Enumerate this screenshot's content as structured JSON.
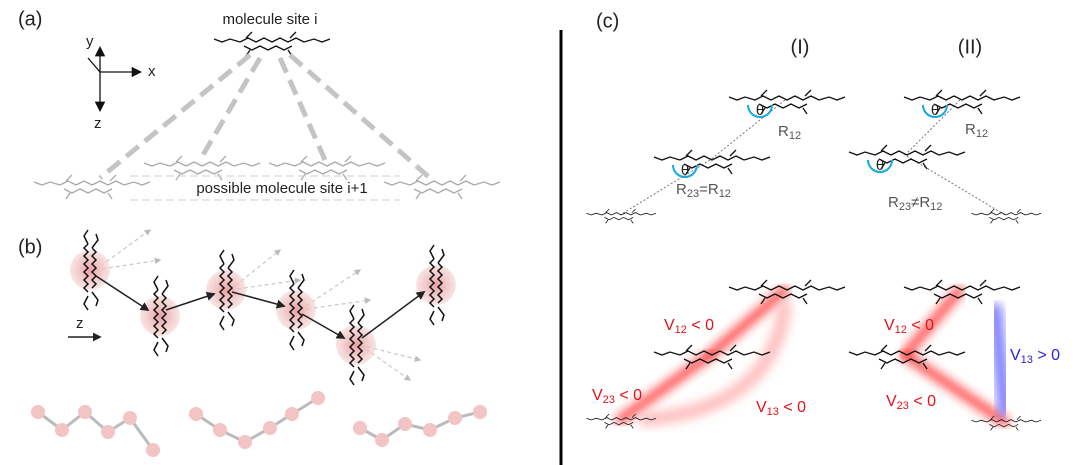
{
  "panel_a": {
    "label": "(a)",
    "axis_y": "y",
    "axis_x": "x",
    "axis_z": "z",
    "top_site": "molecule site i",
    "bottom_sites": "possible molecule site i+1"
  },
  "panel_b": {
    "label": "(b)",
    "axis_z": "z"
  },
  "panel_c": {
    "label": "(c)",
    "columns": [
      {
        "title": "(I)",
        "angle_1": "θ",
        "angle_2": "θ",
        "r12": [
          {
            "t": "R"
          },
          {
            "t": "12",
            "sub": true
          }
        ],
        "r23": [
          {
            "t": "R"
          },
          {
            "t": "23",
            "sub": true
          },
          {
            "t": "=R"
          },
          {
            "t": "12",
            "sub": true
          }
        ],
        "v12": [
          {
            "t": "V"
          },
          {
            "t": "12",
            "sub": true
          },
          {
            "t": " < 0"
          }
        ],
        "v23": [
          {
            "t": "V"
          },
          {
            "t": "23",
            "sub": true
          },
          {
            "t": " < 0"
          }
        ],
        "v13": [
          {
            "t": "V"
          },
          {
            "t": "13",
            "sub": true
          },
          {
            "t": " < 0"
          }
        ]
      },
      {
        "title": "(II)",
        "angle_1": "θ",
        "angle_2": "θ",
        "r12": [
          {
            "t": "R"
          },
          {
            "t": "12",
            "sub": true
          }
        ],
        "r23": [
          {
            "t": "R"
          },
          {
            "t": "23",
            "sub": true
          },
          {
            "t": "≠R"
          },
          {
            "t": "12",
            "sub": true
          }
        ],
        "v12": [
          {
            "t": "V"
          },
          {
            "t": "12",
            "sub": true
          },
          {
            "t": " < 0"
          }
        ],
        "v23": [
          {
            "t": "V"
          },
          {
            "t": "23",
            "sub": true
          },
          {
            "t": " < 0"
          }
        ],
        "v13": [
          {
            "t": "V"
          },
          {
            "t": "13",
            "sub": true
          },
          {
            "t": " > 0"
          }
        ]
      }
    ]
  }
}
